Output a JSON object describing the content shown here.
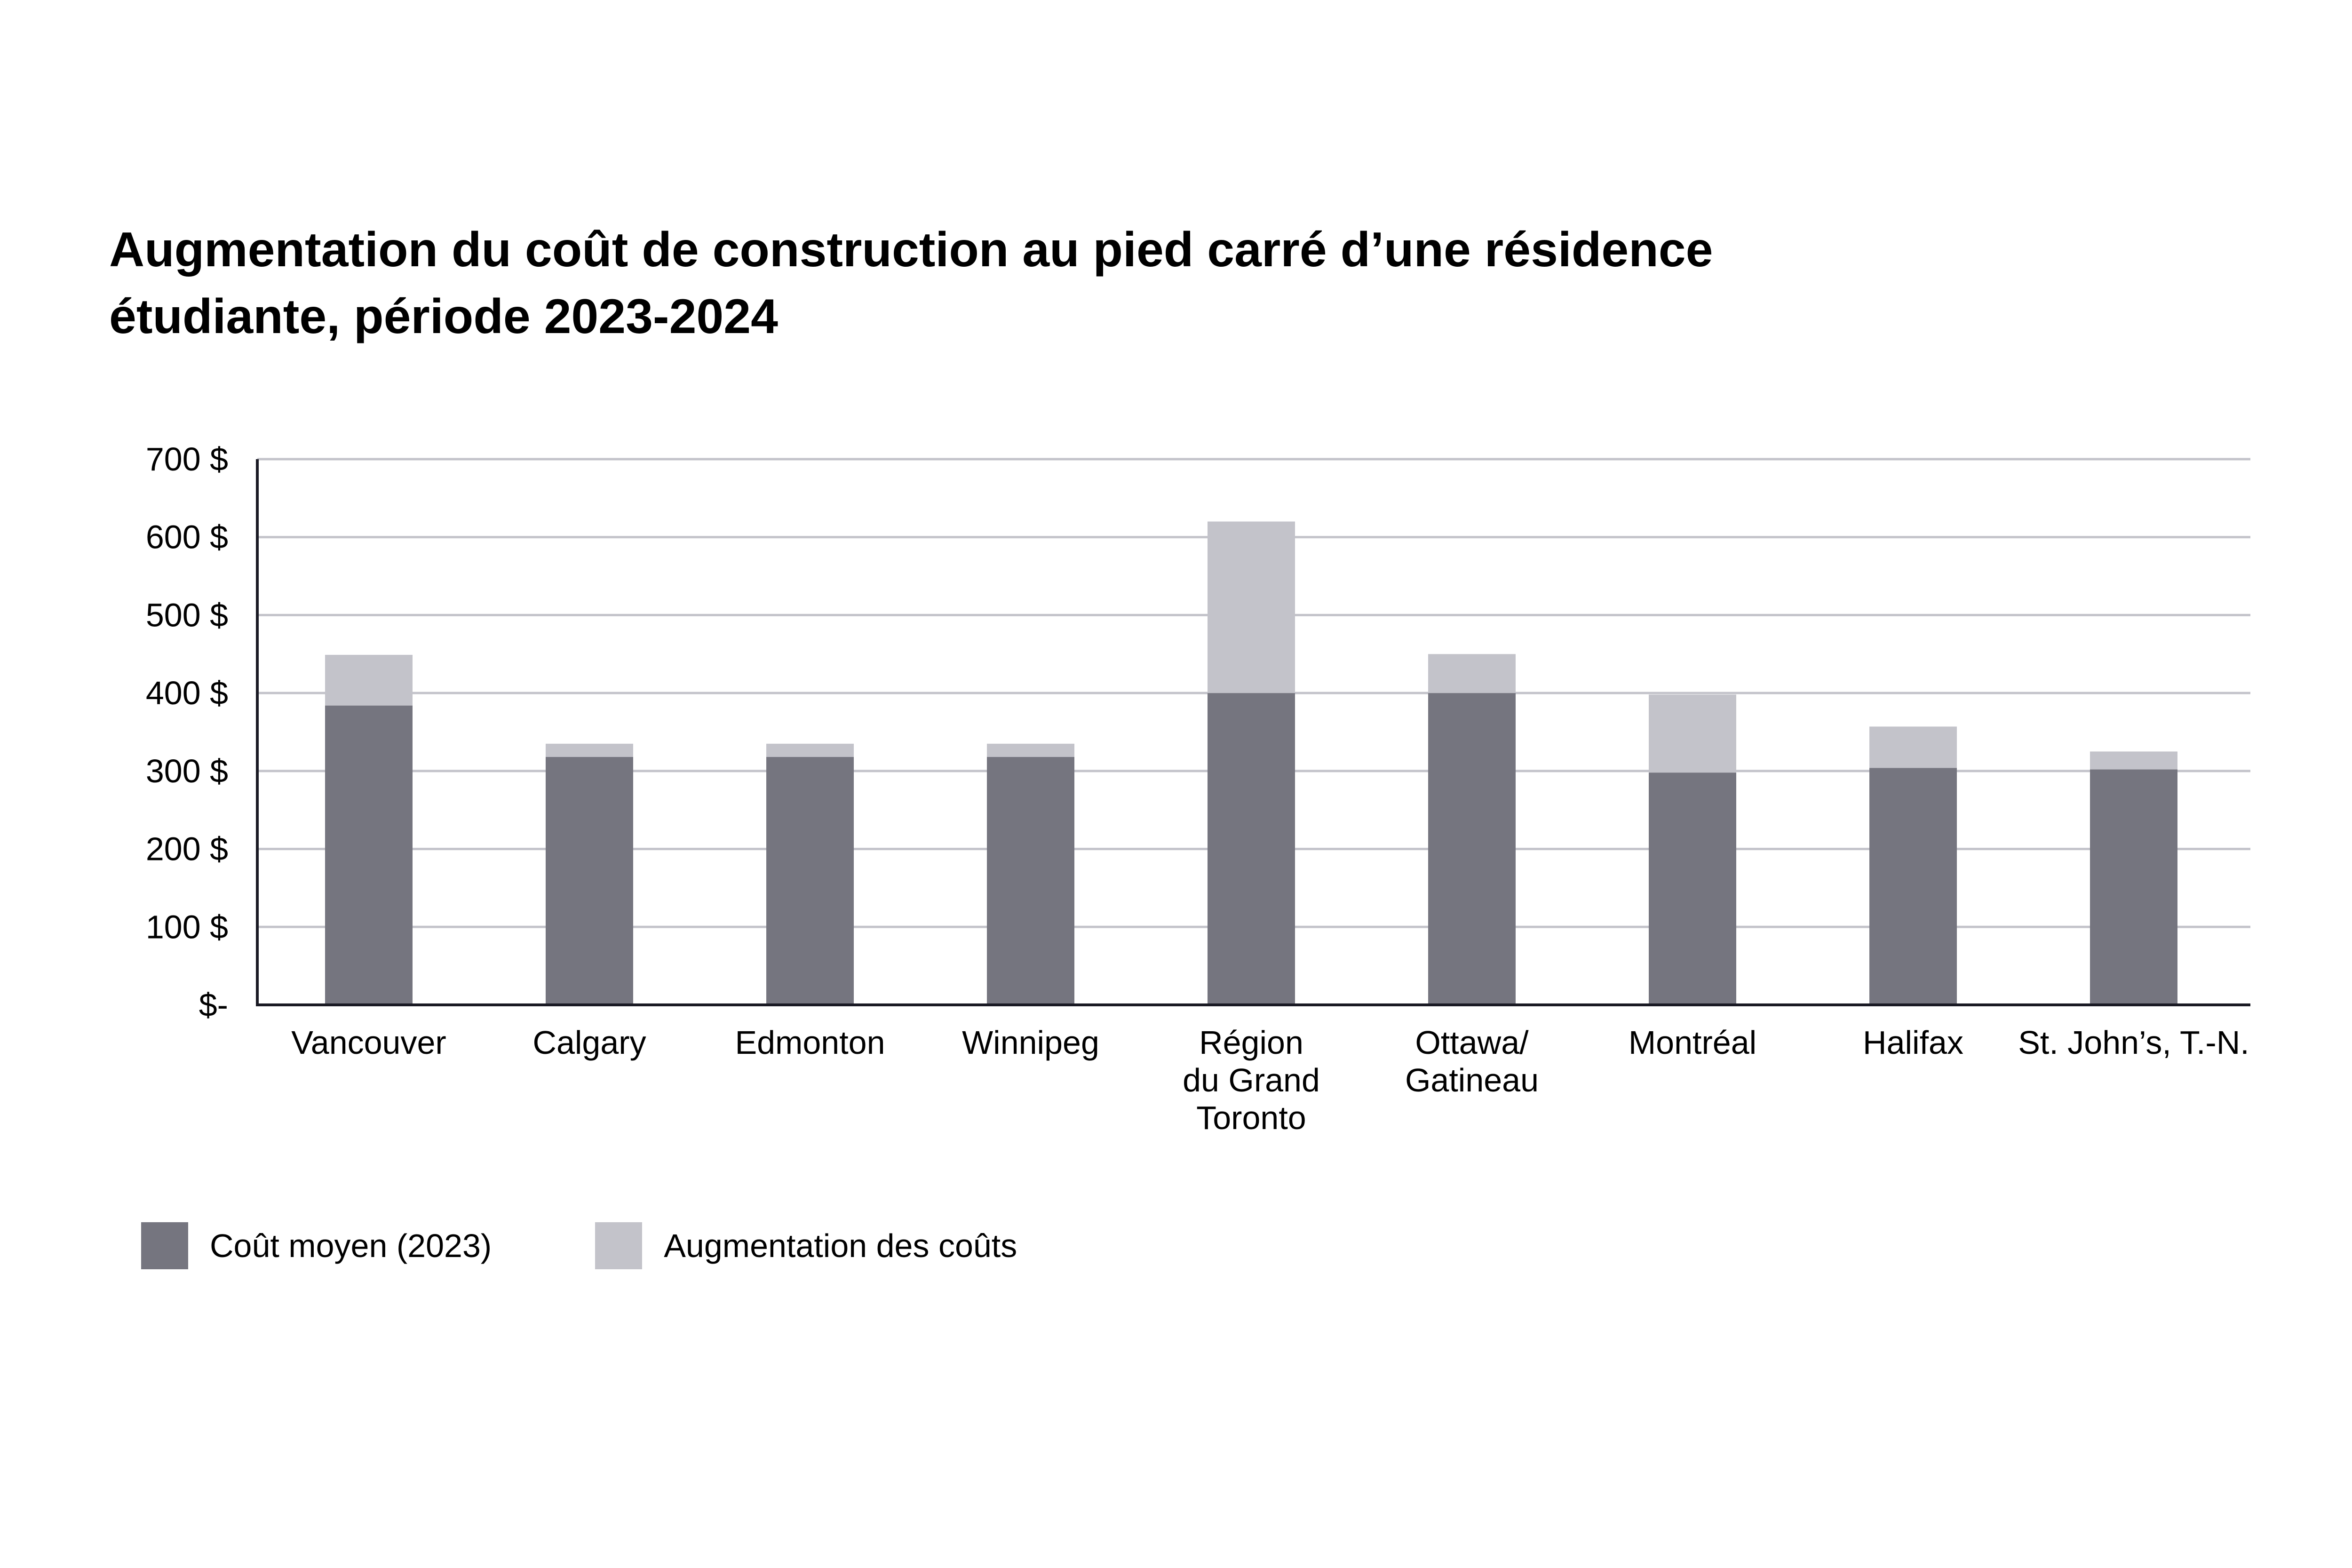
{
  "title_lines": [
    "Augmentation du coût de construction au pied carré d’une résidence",
    "étudiante, période 2023-2024"
  ],
  "colors": {
    "base": "#75757f",
    "increase": "#c3c3ca",
    "grid": "#c3c3ca",
    "axis": "#1a1a24"
  },
  "chart_data": {
    "type": "bar",
    "stacked": true,
    "title": "Augmentation du coût de construction au pied carré d’une résidence étudiante, période 2023-2024",
    "xlabel": "",
    "ylabel": "",
    "ylim": [
      0,
      700
    ],
    "yticks": [
      0,
      100,
      200,
      300,
      400,
      500,
      600,
      700
    ],
    "ytick_labels": [
      "$-",
      "100 $",
      "200 $",
      "300 $",
      "400 $",
      "500 $",
      "600 $",
      "700 $"
    ],
    "grid": true,
    "legend_position": "bottom-left",
    "categories": [
      [
        "Vancouver"
      ],
      [
        "Calgary"
      ],
      [
        "Edmonton"
      ],
      [
        "Winnipeg"
      ],
      [
        "Région",
        "du Grand",
        "Toronto"
      ],
      [
        "Ottawa/",
        "Gatineau"
      ],
      [
        "Montréal"
      ],
      [
        "Halifax"
      ],
      [
        "St. John’s, T.-N."
      ]
    ],
    "series": [
      {
        "name": "Coût moyen (2023)",
        "values": [
          384,
          318,
          318,
          318,
          400,
          400,
          298,
          304,
          302
        ]
      },
      {
        "name": "Augmentation des coûts",
        "values": [
          65,
          17,
          17,
          17,
          220,
          50,
          100,
          53,
          23
        ]
      }
    ]
  }
}
